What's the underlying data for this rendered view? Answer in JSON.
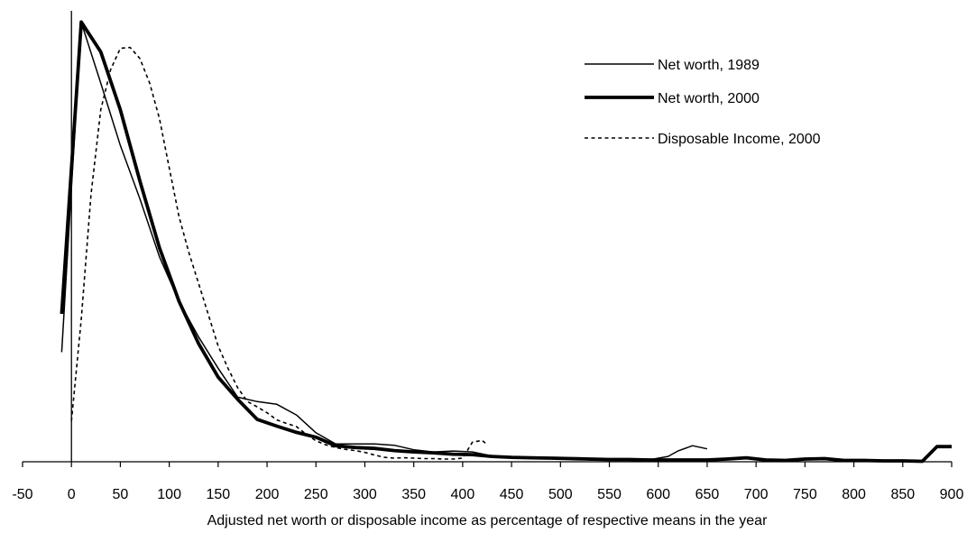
{
  "chart_data": {
    "type": "line",
    "title": "",
    "xlabel": "Adjusted net worth or disposable income as percentage of respective means in the year",
    "ylabel": "",
    "xlim": [
      -50,
      900
    ],
    "ylim": [
      0,
      1
    ],
    "x_ticks": [
      -50,
      0,
      50,
      100,
      150,
      200,
      250,
      300,
      350,
      400,
      450,
      500,
      550,
      600,
      650,
      700,
      750,
      800,
      850,
      900
    ],
    "x_tick_labels": [
      "-50",
      "0",
      "50",
      "100",
      "150",
      "200",
      "250",
      "300",
      "350",
      "400",
      "450",
      "500",
      "550",
      "600",
      "650",
      "700",
      "750",
      "800",
      "850",
      "900"
    ],
    "grid": false,
    "legend_position": "top-right",
    "series": [
      {
        "name": "Net worth, 1989",
        "style": "thin-solid",
        "points": [
          [
            -10,
            0.246
          ],
          [
            10,
            0.986
          ],
          [
            30,
            0.85
          ],
          [
            50,
            0.71
          ],
          [
            70,
            0.59
          ],
          [
            90,
            0.46
          ],
          [
            110,
            0.36
          ],
          [
            130,
            0.28
          ],
          [
            150,
            0.21
          ],
          [
            170,
            0.145
          ],
          [
            190,
            0.135
          ],
          [
            210,
            0.129
          ],
          [
            230,
            0.105
          ],
          [
            250,
            0.065
          ],
          [
            270,
            0.04
          ],
          [
            290,
            0.04
          ],
          [
            310,
            0.04
          ],
          [
            330,
            0.037
          ],
          [
            350,
            0.027
          ],
          [
            370,
            0.022
          ],
          [
            390,
            0.024
          ],
          [
            410,
            0.022
          ],
          [
            430,
            0.013
          ],
          [
            450,
            0.01
          ],
          [
            470,
            0.01
          ],
          [
            490,
            0.008
          ],
          [
            510,
            0.009
          ],
          [
            530,
            0.004
          ],
          [
            550,
            0.006
          ],
          [
            570,
            0.004
          ],
          [
            590,
            0.004
          ],
          [
            610,
            0.012
          ],
          [
            620,
            0.024
          ],
          [
            635,
            0.036
          ],
          [
            650,
            0.029
          ]
        ]
      },
      {
        "name": "Net worth, 2000",
        "style": "thick-solid",
        "points": [
          [
            -10,
            0.332
          ],
          [
            10,
            0.987
          ],
          [
            30,
            0.92
          ],
          [
            50,
            0.79
          ],
          [
            70,
            0.63
          ],
          [
            90,
            0.48
          ],
          [
            110,
            0.36
          ],
          [
            130,
            0.265
          ],
          [
            150,
            0.19
          ],
          [
            170,
            0.14
          ],
          [
            190,
            0.095
          ],
          [
            210,
            0.08
          ],
          [
            230,
            0.066
          ],
          [
            250,
            0.055
          ],
          [
            270,
            0.036
          ],
          [
            290,
            0.032
          ],
          [
            310,
            0.03
          ],
          [
            330,
            0.025
          ],
          [
            350,
            0.022
          ],
          [
            370,
            0.02
          ],
          [
            390,
            0.017
          ],
          [
            410,
            0.016
          ],
          [
            430,
            0.012
          ],
          [
            450,
            0.01
          ],
          [
            470,
            0.009
          ],
          [
            490,
            0.008
          ],
          [
            510,
            0.007
          ],
          [
            530,
            0.006
          ],
          [
            550,
            0.005
          ],
          [
            570,
            0.005
          ],
          [
            590,
            0.004
          ],
          [
            610,
            0.004
          ],
          [
            630,
            0.004
          ],
          [
            650,
            0.004
          ],
          [
            670,
            0.006
          ],
          [
            690,
            0.009
          ],
          [
            710,
            0.004
          ],
          [
            730,
            0.003
          ],
          [
            750,
            0.006
          ],
          [
            770,
            0.007
          ],
          [
            790,
            0.003
          ],
          [
            810,
            0.003
          ],
          [
            830,
            0.002
          ],
          [
            850,
            0.002
          ],
          [
            870,
            0.001
          ],
          [
            885,
            0.034
          ],
          [
            900,
            0.034
          ]
        ]
      },
      {
        "name": "Disposable Income, 2000",
        "style": "dashed",
        "points": [
          [
            0,
            0.091
          ],
          [
            10,
            0.32
          ],
          [
            20,
            0.6
          ],
          [
            30,
            0.79
          ],
          [
            40,
            0.88
          ],
          [
            50,
            0.928
          ],
          [
            60,
            0.93
          ],
          [
            70,
            0.905
          ],
          [
            80,
            0.85
          ],
          [
            90,
            0.77
          ],
          [
            100,
            0.66
          ],
          [
            110,
            0.55
          ],
          [
            120,
            0.47
          ],
          [
            130,
            0.4
          ],
          [
            140,
            0.33
          ],
          [
            150,
            0.26
          ],
          [
            160,
            0.21
          ],
          [
            170,
            0.166
          ],
          [
            180,
            0.135
          ],
          [
            190,
            0.123
          ],
          [
            200,
            0.11
          ],
          [
            210,
            0.094
          ],
          [
            220,
            0.086
          ],
          [
            230,
            0.079
          ],
          [
            240,
            0.062
          ],
          [
            250,
            0.047
          ],
          [
            260,
            0.038
          ],
          [
            270,
            0.032
          ],
          [
            280,
            0.028
          ],
          [
            290,
            0.025
          ],
          [
            300,
            0.021
          ],
          [
            310,
            0.015
          ],
          [
            320,
            0.01
          ],
          [
            330,
            0.008
          ],
          [
            340,
            0.009
          ],
          [
            350,
            0.008
          ],
          [
            360,
            0.007
          ],
          [
            370,
            0.007
          ],
          [
            380,
            0.006
          ],
          [
            390,
            0.006
          ],
          [
            400,
            0.008
          ],
          [
            410,
            0.044
          ],
          [
            420,
            0.048
          ],
          [
            425,
            0.038
          ]
        ]
      }
    ]
  }
}
